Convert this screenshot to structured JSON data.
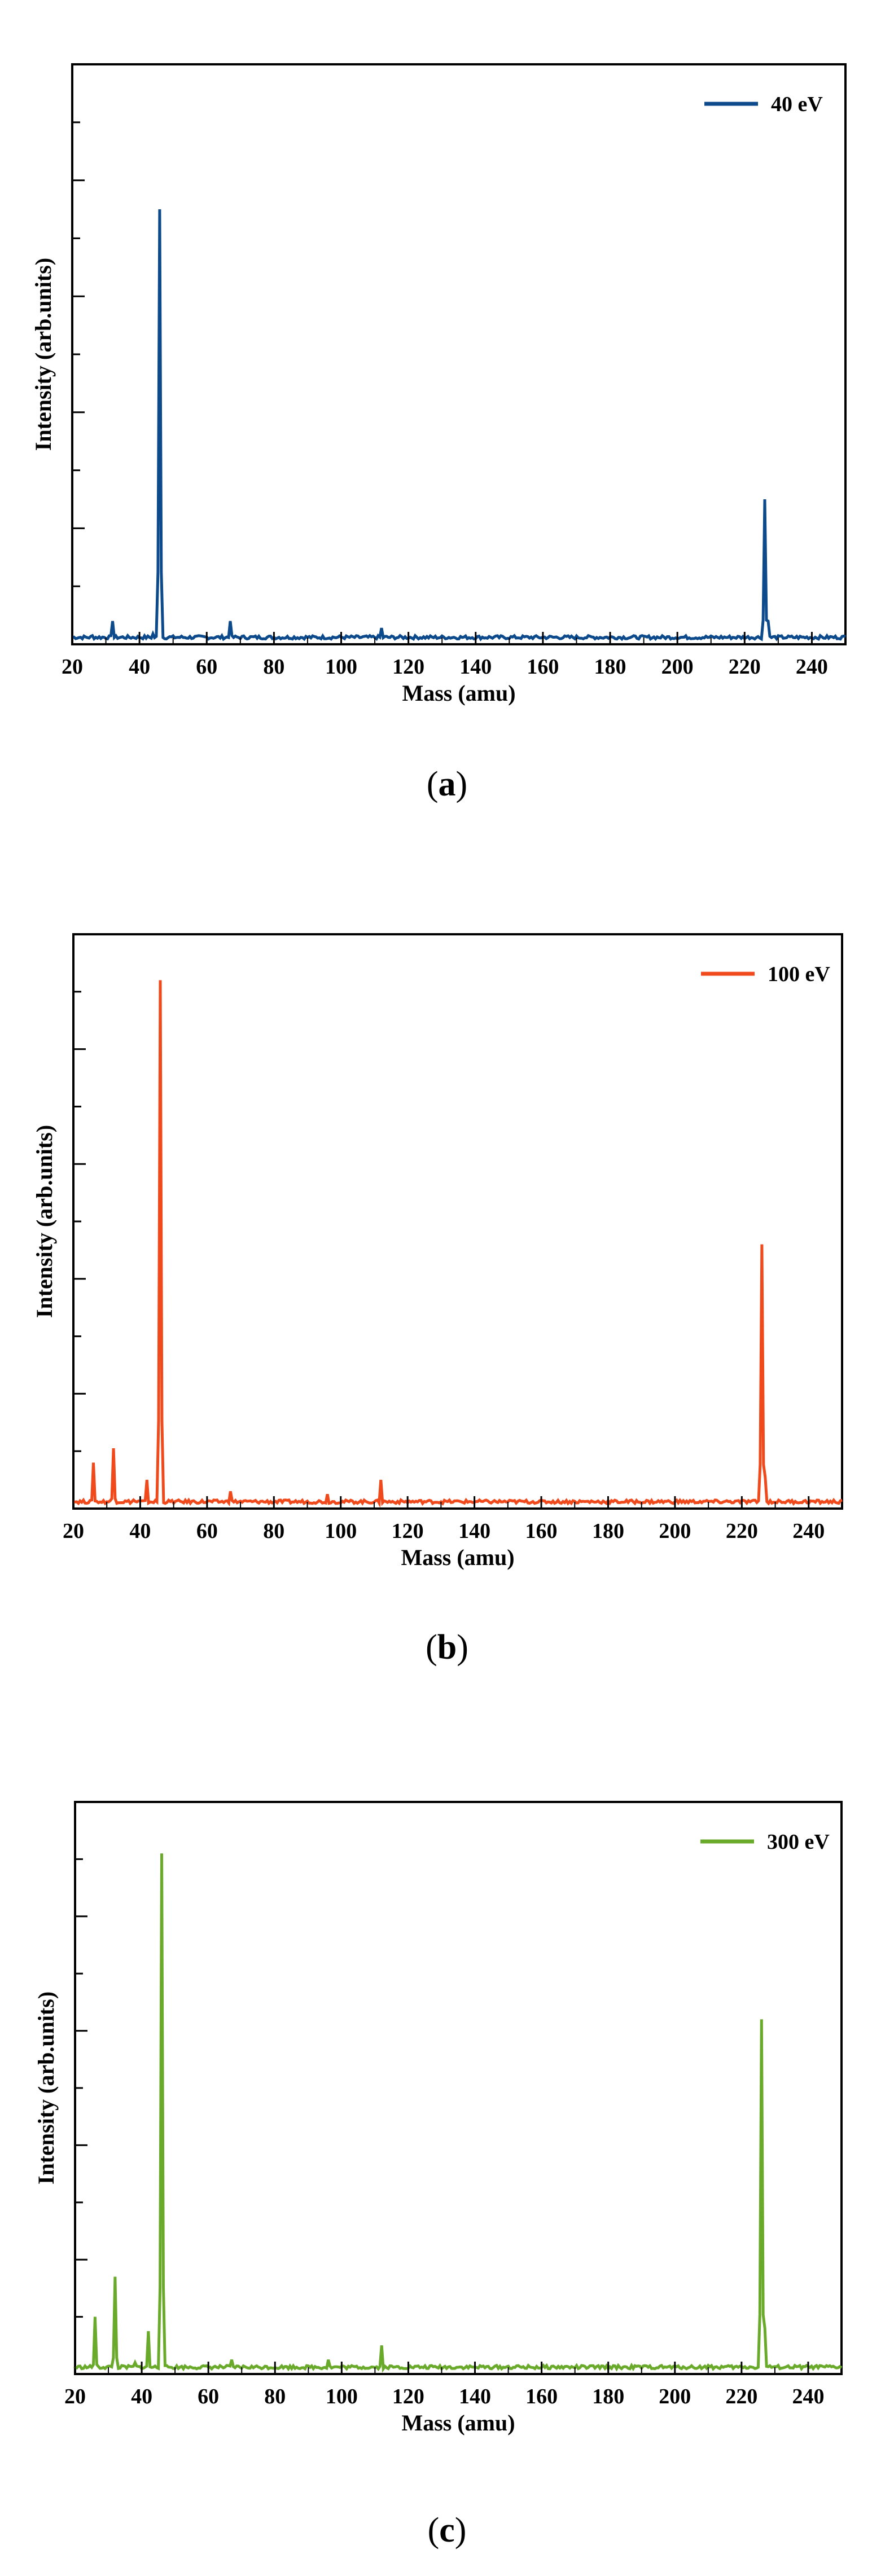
{
  "chart_data": [
    {
      "type": "line",
      "panel_label": "a",
      "xlabel": "Mass (amu)",
      "ylabel": "Intensity (arb.units)",
      "xlim": [
        20,
        250
      ],
      "ylim": [
        0,
        100
      ],
      "xticks": [
        20,
        40,
        60,
        80,
        100,
        120,
        140,
        160,
        180,
        200,
        220,
        240
      ],
      "legend_position": "top-right",
      "color": "#0c4a8c",
      "series": [
        {
          "name": "40 eV",
          "x": [
            20,
            26,
            32,
            44,
            46,
            67,
            112,
            226,
            227
          ],
          "y": [
            1.2,
            1.5,
            4.0,
            1.8,
            75,
            4.0,
            2.8,
            25,
            4.0
          ]
        }
      ]
    },
    {
      "type": "line",
      "panel_label": "b",
      "xlabel": "Mass (amu)",
      "ylabel": "Intensity (arb.units)",
      "xlim": [
        20,
        250
      ],
      "ylim": [
        0,
        100
      ],
      "xticks": [
        20,
        40,
        60,
        80,
        100,
        120,
        140,
        160,
        180,
        200,
        220,
        240
      ],
      "legend_position": "top-right",
      "color": "#f04a1c",
      "series": [
        {
          "name": "100 eV",
          "x": [
            20,
            26,
            32,
            38,
            42,
            46,
            67,
            96,
            112,
            226,
            227
          ],
          "y": [
            1.2,
            8.0,
            10.5,
            1.5,
            5.0,
            92,
            3.0,
            2.5,
            5.0,
            46,
            5.5
          ]
        }
      ]
    },
    {
      "type": "line",
      "panel_label": "c",
      "xlabel": "Mass (amu)",
      "ylabel": "Intensity (arb.units)",
      "xlim": [
        20,
        250
      ],
      "ylim": [
        0,
        100
      ],
      "xticks": [
        20,
        40,
        60,
        80,
        100,
        120,
        140,
        160,
        180,
        200,
        220,
        240
      ],
      "legend_position": "top-right",
      "color": "#6aaa2a",
      "series": [
        {
          "name": "300 eV",
          "x": [
            20,
            26,
            32,
            38,
            42,
            46,
            67,
            96,
            112,
            210,
            226,
            227
          ],
          "y": [
            1.2,
            10.0,
            17.0,
            2.0,
            7.5,
            91,
            2.5,
            2.5,
            5.0,
            1.5,
            62,
            8.0
          ]
        }
      ]
    }
  ]
}
